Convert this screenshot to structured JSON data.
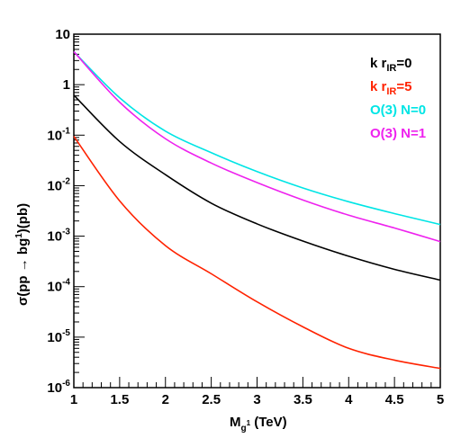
{
  "chart_data": {
    "type": "line",
    "title": "",
    "xlabel": "M_{g^1} (TeV)",
    "ylabel": "σ(pp → bg^1)(pb)",
    "xlim": [
      1,
      5
    ],
    "ylim": [
      1e-06,
      10
    ],
    "yscale": "log",
    "grid": false,
    "legend_position": "top-right",
    "x_ticks": [
      "1",
      "1.5",
      "2",
      "2.5",
      "3",
      "3.5",
      "4",
      "4.5",
      "5"
    ],
    "y_ticks": [
      {
        "value": 1e-06,
        "base": "10",
        "exp": "-6"
      },
      {
        "value": 1e-05,
        "base": "10",
        "exp": "-5"
      },
      {
        "value": 0.0001,
        "base": "10",
        "exp": "-4"
      },
      {
        "value": 0.001,
        "base": "10",
        "exp": "-3"
      },
      {
        "value": 0.01,
        "base": "10",
        "exp": "-2"
      },
      {
        "value": 0.1,
        "base": "10",
        "exp": "-1"
      },
      {
        "value": 1,
        "base": "1",
        "exp": ""
      },
      {
        "value": 10,
        "base": "10",
        "exp": ""
      }
    ],
    "series": [
      {
        "name": "k r_IR=0",
        "name_main": "k r",
        "name_sub": "IR",
        "name_tail": "=0",
        "color": "#000000",
        "x": [
          1,
          1.5,
          2,
          2.5,
          3,
          3.5,
          4,
          4.5,
          5
        ],
        "y": [
          0.62,
          0.075,
          0.0165,
          0.0045,
          0.00175,
          0.0008,
          0.0004,
          0.00022,
          0.000135
        ]
      },
      {
        "name": "k r_IR=5",
        "name_main": "k r",
        "name_sub": "IR",
        "name_tail": "=5",
        "color": "#ff2200",
        "x": [
          1,
          1.5,
          2,
          2.5,
          3,
          3.5,
          4,
          4.5,
          5
        ],
        "y": [
          0.095,
          0.005,
          0.00065,
          0.00018,
          5e-05,
          1.6e-05,
          6e-06,
          3.5e-06,
          2.4e-06
        ]
      },
      {
        "name": "O(3) N=0",
        "name_main": "O(3) N=0",
        "name_sub": "",
        "name_tail": "",
        "color": "#00e5e5",
        "x": [
          1,
          1.5,
          2,
          2.5,
          3,
          3.5,
          4,
          4.5,
          5
        ],
        "y": [
          4.5,
          0.55,
          0.12,
          0.045,
          0.019,
          0.009,
          0.0048,
          0.0028,
          0.0017
        ]
      },
      {
        "name": "O(3) N=1",
        "name_main": "O(3) N=1",
        "name_sub": "",
        "name_tail": "",
        "color": "#ee22ee",
        "x": [
          1,
          1.5,
          2,
          2.5,
          3,
          3.5,
          4,
          4.5,
          5
        ],
        "y": [
          4.5,
          0.45,
          0.085,
          0.028,
          0.0115,
          0.0052,
          0.0026,
          0.00145,
          0.00078
        ]
      }
    ]
  }
}
